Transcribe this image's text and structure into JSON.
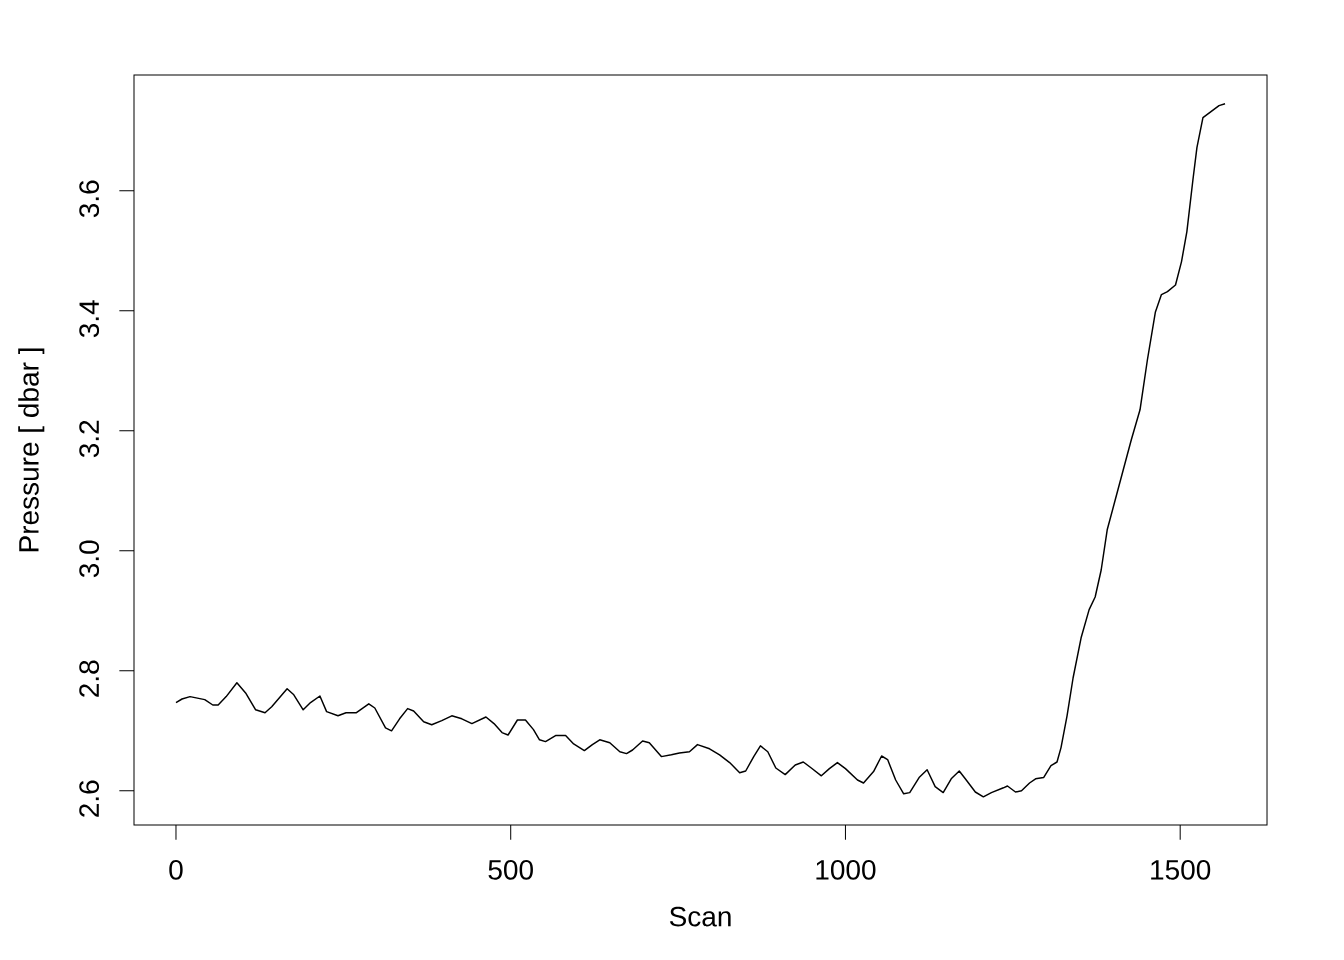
{
  "chart_data": {
    "type": "line",
    "xlabel": "Scan",
    "ylabel": "Pressure [ dbar ]",
    "xlim": [
      -62.7,
      1629.7
    ],
    "ylim": [
      2.543,
      3.793
    ],
    "xticks": [
      0,
      500,
      1000,
      1500
    ],
    "yticks": [
      2.6,
      2.8,
      {
        "value": 3.0,
        "label": "3.0"
      },
      3.2,
      3.4,
      3.6
    ],
    "color": "#000000",
    "x": [
      0,
      9,
      21,
      43,
      55,
      63,
      75,
      91,
      104,
      119,
      133,
      143,
      166,
      176,
      190,
      201,
      215,
      225,
      242,
      254,
      269,
      288,
      297,
      313,
      322,
      334,
      346,
      355,
      370,
      382,
      397,
      412,
      427,
      442,
      463,
      475,
      487,
      496,
      510,
      522,
      534,
      543,
      552,
      567,
      582,
      594,
      610,
      622,
      633,
      648,
      663,
      673,
      682,
      697,
      707,
      725,
      740,
      752,
      767,
      779,
      797,
      812,
      827,
      842,
      851,
      863,
      873,
      884,
      896,
      910,
      925,
      937,
      949,
      964,
      976,
      988,
      1000,
      1018,
      1027,
      1042,
      1054,
      1063,
      1075,
      1087,
      1096,
      1110,
      1122,
      1134,
      1146,
      1158,
      1170,
      1179,
      1194,
      1206,
      1218,
      1236,
      1242,
      1254,
      1263,
      1275,
      1284,
      1296,
      1307,
      1316,
      1322,
      1331,
      1340,
      1352,
      1364,
      1373,
      1382,
      1391,
      1403,
      1415,
      1427,
      1440,
      1451,
      1463,
      1472,
      1481,
      1493,
      1502,
      1510,
      1519,
      1525,
      1534,
      1546,
      1558,
      1567
    ],
    "values": [
      2.747,
      2.753,
      2.757,
      2.752,
      2.743,
      2.743,
      2.757,
      2.78,
      2.763,
      2.735,
      2.73,
      2.74,
      2.77,
      2.76,
      2.735,
      2.747,
      2.758,
      2.732,
      2.725,
      2.73,
      2.73,
      2.745,
      2.738,
      2.705,
      2.7,
      2.72,
      2.737,
      2.733,
      2.715,
      2.71,
      2.717,
      2.725,
      2.72,
      2.712,
      2.723,
      2.712,
      2.697,
      2.693,
      2.718,
      2.718,
      2.702,
      2.685,
      2.682,
      2.692,
      2.692,
      2.678,
      2.667,
      2.677,
      2.685,
      2.68,
      2.665,
      2.662,
      2.668,
      2.683,
      2.68,
      2.657,
      2.66,
      2.663,
      2.665,
      2.677,
      2.67,
      2.66,
      2.647,
      2.63,
      2.633,
      2.657,
      2.675,
      2.665,
      2.638,
      2.627,
      2.643,
      2.648,
      2.638,
      2.625,
      2.637,
      2.647,
      2.637,
      2.618,
      2.613,
      2.632,
      2.658,
      2.652,
      2.618,
      2.595,
      2.597,
      2.622,
      2.635,
      2.607,
      2.597,
      2.62,
      2.633,
      2.62,
      2.598,
      2.59,
      2.597,
      2.605,
      2.608,
      2.598,
      2.6,
      2.613,
      2.62,
      2.622,
      2.642,
      2.648,
      2.672,
      2.725,
      2.788,
      2.855,
      2.902,
      2.923,
      2.968,
      3.035,
      3.085,
      3.135,
      3.185,
      3.235,
      3.318,
      3.398,
      3.427,
      3.432,
      3.443,
      3.482,
      3.532,
      3.618,
      3.672,
      3.722,
      3.732,
      3.742,
      3.745
    ]
  }
}
